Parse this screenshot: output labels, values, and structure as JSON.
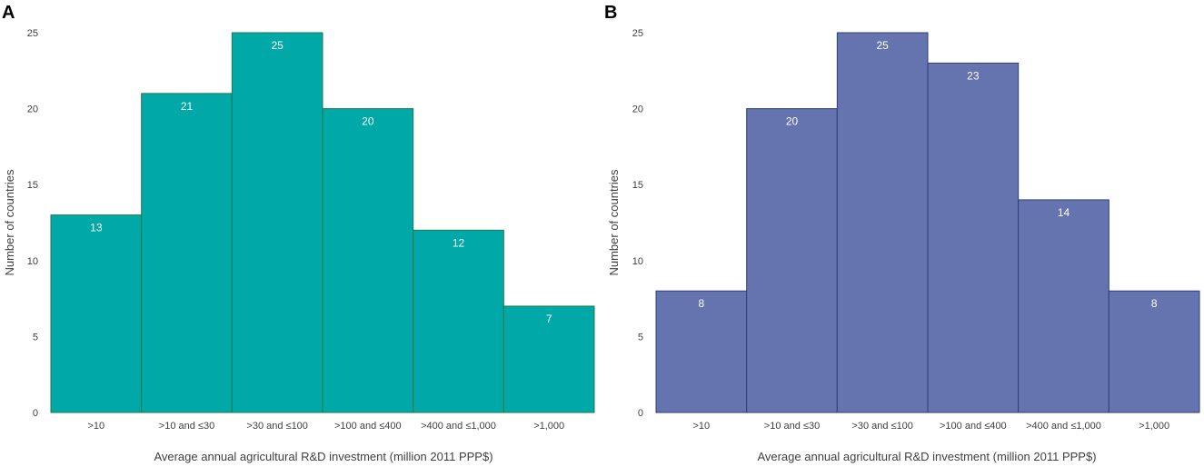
{
  "chart_data": [
    {
      "type": "bar",
      "panel": "A",
      "title": "",
      "categories": [
        ">10",
        ">10 and ≤30",
        ">30 and ≤100",
        ">100 and ≤400",
        ">400 and ≤1,000",
        ">1,000"
      ],
      "values": [
        13,
        21,
        25,
        20,
        12,
        7
      ],
      "xlabel": "Average annual agricultural R&D investment (million 2011 PPP$)",
      "ylabel": "Number of countries",
      "ylim": [
        0,
        25
      ],
      "yticks": [
        0,
        5,
        10,
        15,
        20,
        25
      ],
      "grid": false,
      "color": "#00A8A8",
      "edge_color": "#1E7A4A"
    },
    {
      "type": "bar",
      "panel": "B",
      "title": "",
      "categories": [
        ">10",
        ">10 and ≤30",
        ">30 and ≤100",
        ">100 and ≤400",
        ">400 and ≤1,000",
        ">1,000"
      ],
      "values": [
        8,
        20,
        25,
        23,
        14,
        8
      ],
      "xlabel": "Average annual agricultural R&D investment (million 2011 PPP$)",
      "ylabel": "Number of countries",
      "ylim": [
        0,
        25
      ],
      "yticks": [
        0,
        5,
        10,
        15,
        20,
        25
      ],
      "grid": false,
      "color": "#6573AE",
      "edge_color": "#2F3F7A"
    }
  ]
}
